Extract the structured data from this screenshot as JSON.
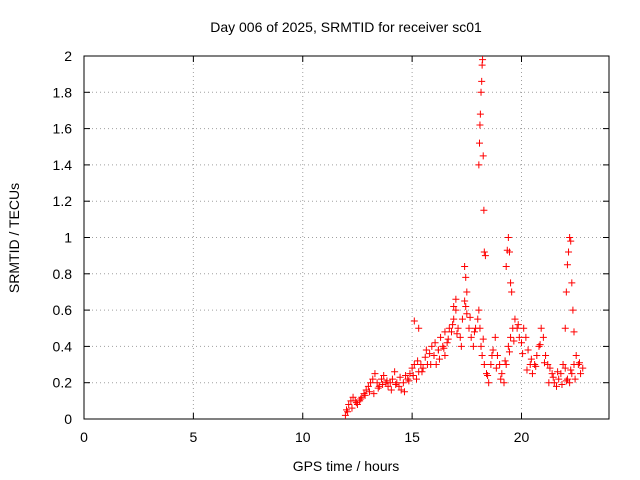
{
  "chart_data": {
    "type": "scatter",
    "title": "Day 006 of 2025, SRMTID for receiver sc01",
    "xlabel": "GPS time / hours",
    "ylabel": "SRMTID / TECUs",
    "xlim": [
      0,
      24
    ],
    "ylim": [
      0,
      2
    ],
    "xticks": [
      0,
      5,
      10,
      15,
      20
    ],
    "xtick_labels": [
      "0",
      "5",
      "10",
      "15",
      "20"
    ],
    "yticks": [
      0,
      0.2,
      0.4,
      0.6,
      0.8,
      1.0,
      1.2,
      1.4,
      1.6,
      1.8,
      2.0
    ],
    "ytick_labels": [
      "0",
      "0.2",
      "0.4",
      "0.6",
      "0.8",
      "1",
      "1.2",
      "1.4",
      "1.6",
      "1.8",
      "2"
    ],
    "grid": true,
    "marker": "+",
    "color": "#ff0000",
    "series": [
      {
        "name": "SRMTID",
        "x": [
          11.95,
          12.0,
          12.1,
          12.2,
          12.3,
          12.4,
          12.5,
          12.6,
          12.7,
          12.8,
          12.9,
          13.0,
          13.1,
          13.2,
          13.3,
          13.4,
          13.5,
          13.6,
          13.7,
          13.8,
          13.9,
          14.0,
          14.1,
          14.2,
          14.3,
          14.4,
          14.5,
          14.6,
          14.7,
          14.8,
          14.9,
          15.0,
          15.1,
          15.2,
          15.3,
          15.4,
          15.5,
          15.6,
          15.7,
          15.8,
          15.9,
          16.0,
          16.1,
          16.2,
          16.3,
          16.4,
          16.5,
          16.6,
          16.7,
          16.8,
          16.9,
          17.0,
          17.1,
          17.2,
          17.3,
          17.4,
          17.5,
          17.6,
          17.7,
          17.8,
          17.9,
          18.0,
          18.05,
          18.1,
          18.15,
          18.2,
          18.3,
          18.4,
          18.5,
          18.6,
          18.7,
          18.8,
          18.9,
          19.0,
          19.1,
          19.2,
          19.3,
          19.4,
          19.5,
          19.6,
          19.7,
          19.8,
          19.9,
          20.0,
          20.1,
          20.2,
          20.3,
          20.4,
          20.5,
          20.6,
          20.7,
          20.8,
          20.9,
          21.0,
          21.1,
          21.2,
          21.3,
          21.4,
          21.5,
          21.6,
          21.7,
          21.8,
          21.9,
          22.0,
          22.1,
          22.2,
          22.3,
          22.4,
          22.5,
          22.6,
          22.7,
          22.8,
          12.05,
          12.25,
          12.45,
          12.65,
          12.85,
          13.05,
          13.25,
          13.45,
          13.65,
          13.85,
          14.05,
          14.25,
          14.45,
          14.65,
          14.85,
          15.05,
          15.25,
          15.45,
          15.65,
          15.85,
          16.05,
          16.25,
          16.45,
          16.65,
          16.85,
          17.05,
          17.25,
          17.45,
          17.65,
          17.85,
          18.25,
          18.45,
          18.65,
          18.85,
          19.05,
          19.25,
          19.45,
          19.65,
          19.85,
          20.05,
          20.25,
          20.45,
          20.65,
          20.85,
          21.05,
          21.25,
          21.45,
          21.65,
          21.85,
          22.05,
          22.25,
          22.45,
          22.65,
          18.05,
          18.08,
          18.1,
          18.12,
          18.15,
          18.18,
          18.2,
          18.22,
          18.25,
          18.28,
          18.3,
          18.35,
          19.3,
          19.35,
          19.4,
          19.45,
          19.5,
          19.55,
          22.0,
          22.05,
          22.1,
          22.15,
          22.2,
          22.25,
          22.3,
          22.35,
          22.4,
          17.4,
          17.45,
          17.5,
          16.9,
          17.0,
          15.1,
          15.3,
          16.2,
          16.5
        ],
        "y": [
          0.02,
          0.05,
          0.08,
          0.1,
          0.12,
          0.1,
          0.08,
          0.1,
          0.12,
          0.14,
          0.16,
          0.18,
          0.2,
          0.22,
          0.25,
          0.2,
          0.18,
          0.22,
          0.24,
          0.2,
          0.18,
          0.2,
          0.22,
          0.26,
          0.2,
          0.18,
          0.16,
          0.2,
          0.24,
          0.22,
          0.25,
          0.28,
          0.3,
          0.22,
          0.26,
          0.3,
          0.28,
          0.34,
          0.3,
          0.36,
          0.4,
          0.35,
          0.3,
          0.38,
          0.45,
          0.4,
          0.35,
          0.42,
          0.5,
          0.48,
          0.55,
          0.6,
          0.5,
          0.45,
          0.55,
          0.65,
          0.58,
          0.5,
          0.45,
          0.4,
          0.5,
          0.55,
          0.6,
          0.5,
          0.4,
          0.35,
          0.3,
          0.25,
          0.2,
          0.3,
          0.38,
          0.45,
          0.35,
          0.3,
          0.25,
          0.2,
          0.3,
          0.4,
          0.45,
          0.5,
          0.55,
          0.5,
          0.45,
          0.42,
          0.5,
          0.45,
          0.38,
          0.3,
          0.25,
          0.3,
          0.35,
          0.4,
          0.5,
          0.45,
          0.35,
          0.3,
          0.28,
          0.25,
          0.2,
          0.18,
          0.22,
          0.25,
          0.3,
          0.28,
          0.22,
          0.2,
          0.25,
          0.3,
          0.35,
          0.3,
          0.25,
          0.28,
          0.04,
          0.06,
          0.09,
          0.11,
          0.13,
          0.15,
          0.14,
          0.17,
          0.19,
          0.21,
          0.16,
          0.19,
          0.23,
          0.15,
          0.21,
          0.24,
          0.32,
          0.26,
          0.38,
          0.3,
          0.42,
          0.33,
          0.39,
          0.44,
          0.52,
          0.47,
          0.4,
          0.62,
          0.56,
          0.48,
          0.44,
          0.24,
          0.35,
          0.28,
          0.22,
          0.32,
          0.37,
          0.43,
          0.52,
          0.36,
          0.27,
          0.33,
          0.29,
          0.41,
          0.31,
          0.2,
          0.23,
          0.26,
          0.19,
          0.21,
          0.27,
          0.22,
          0.31,
          1.4,
          1.52,
          1.62,
          1.68,
          1.8,
          1.86,
          1.95,
          1.98,
          1.45,
          1.15,
          0.92,
          0.9,
          0.84,
          0.93,
          1.0,
          0.92,
          0.75,
          0.7,
          0.5,
          0.7,
          0.85,
          0.92,
          1.0,
          0.98,
          0.75,
          0.6,
          0.48,
          0.84,
          0.78,
          0.7,
          0.62,
          0.66,
          0.54,
          0.5,
          0.38,
          0.48
        ]
      }
    ]
  }
}
